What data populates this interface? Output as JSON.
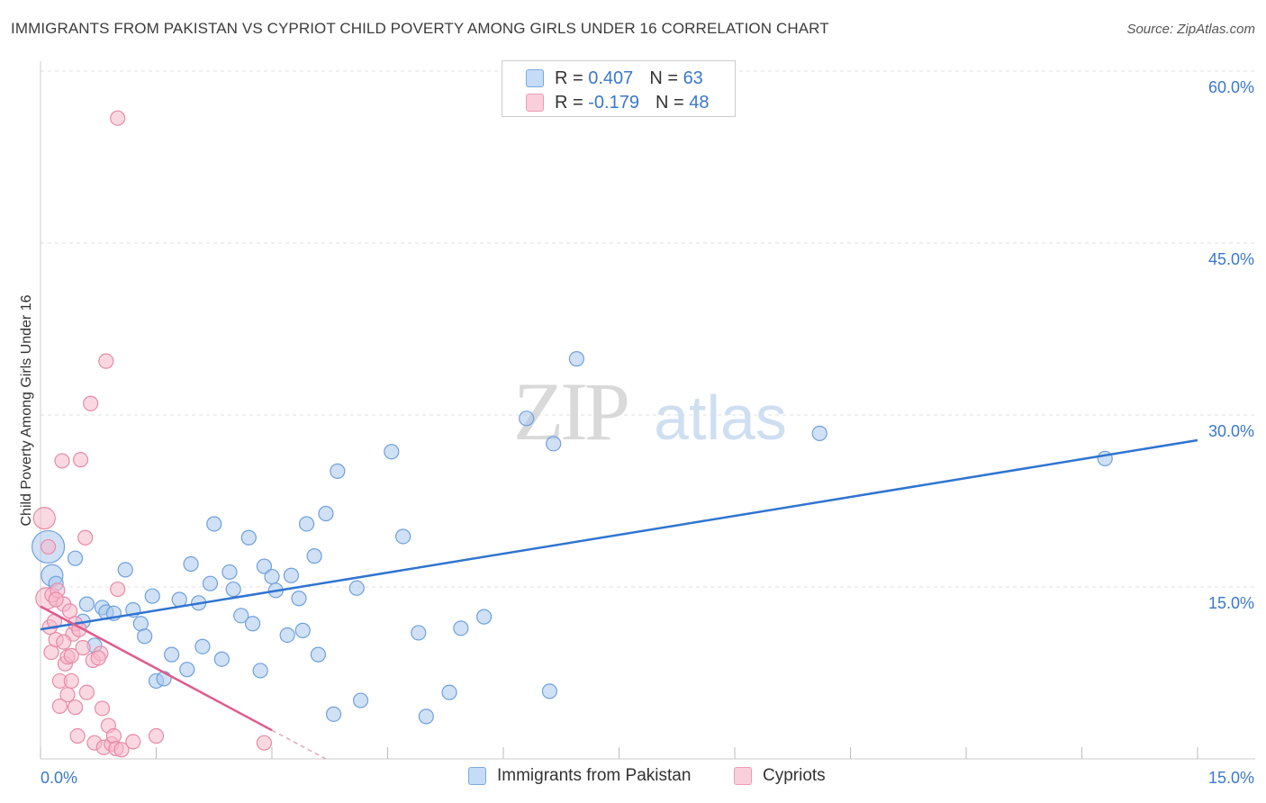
{
  "title": "IMMIGRANTS FROM PAKISTAN VS CYPRIOT CHILD POVERTY AMONG GIRLS UNDER 16 CORRELATION CHART",
  "source": "Source: ZipAtlas.com",
  "watermark": {
    "zip": "ZIP",
    "atlas": "atlas"
  },
  "legend": {
    "series1": {
      "r_label": "R =",
      "r_value": "0.407",
      "n_label": "N =",
      "n_value": "63"
    },
    "series2": {
      "r_label": "R =",
      "r_value": "-0.179",
      "n_label": "N =",
      "n_value": "48"
    }
  },
  "bottom_legend": {
    "series1": "Immigrants from Pakistan",
    "series2": "Cypriots"
  },
  "colors": {
    "blue_fill": "#aac8ef",
    "blue_stroke": "#6fa0dc",
    "blue_line": "#2f74d0",
    "pink_fill": "#f5b8cb",
    "pink_stroke": "#e88aa8",
    "pink_line": "#e05a8a",
    "tick_label": "#3a78c9",
    "grid": "#e2e2e2"
  },
  "chart_data": {
    "type": "scatter",
    "title": "IMMIGRANTS FROM PAKISTAN VS CYPRIOT CHILD POVERTY AMONG GIRLS UNDER 16 CORRELATION CHART",
    "xlabel": "",
    "ylabel": "Child Poverty Among Girls Under 16",
    "xlim": [
      0,
      15
    ],
    "ylim": [
      0,
      60
    ],
    "x_tick_labels": [
      "0.0%",
      "15.0%"
    ],
    "y_tick_values": [
      15,
      30,
      45,
      60
    ],
    "y_tick_labels": [
      "15.0%",
      "30.0%",
      "45.0%",
      "60.0%"
    ],
    "series": [
      {
        "name": "Immigrants from Pakistan",
        "color": "blue",
        "points": [
          [
            0.1,
            18.5,
            3
          ],
          [
            0.15,
            16.0,
            2
          ],
          [
            0.2,
            15.3,
            1
          ],
          [
            0.45,
            17.5,
            1
          ],
          [
            0.55,
            12.0,
            1
          ],
          [
            0.6,
            13.5,
            1
          ],
          [
            0.7,
            9.9,
            1
          ],
          [
            0.8,
            13.2,
            1
          ],
          [
            0.85,
            12.8,
            1
          ],
          [
            0.95,
            12.7,
            1
          ],
          [
            1.1,
            16.5,
            1
          ],
          [
            1.2,
            13.0,
            1
          ],
          [
            1.3,
            11.8,
            1
          ],
          [
            1.35,
            10.7,
            1
          ],
          [
            1.45,
            14.2,
            1
          ],
          [
            1.5,
            6.8,
            1
          ],
          [
            1.6,
            7.0,
            1
          ],
          [
            1.7,
            9.1,
            1
          ],
          [
            1.8,
            13.9,
            1
          ],
          [
            1.9,
            7.8,
            1
          ],
          [
            1.95,
            17.0,
            1
          ],
          [
            2.05,
            13.6,
            1
          ],
          [
            2.1,
            9.8,
            1
          ],
          [
            2.2,
            15.3,
            1
          ],
          [
            2.25,
            20.5,
            1
          ],
          [
            2.35,
            8.7,
            1
          ],
          [
            2.45,
            16.3,
            1
          ],
          [
            2.5,
            14.8,
            1
          ],
          [
            2.6,
            12.5,
            1
          ],
          [
            2.7,
            19.3,
            1
          ],
          [
            2.75,
            11.8,
            1
          ],
          [
            2.85,
            7.7,
            1
          ],
          [
            2.9,
            16.8,
            1
          ],
          [
            3.0,
            15.9,
            1
          ],
          [
            3.05,
            14.7,
            1
          ],
          [
            3.2,
            10.8,
            1
          ],
          [
            3.25,
            16.0,
            1
          ],
          [
            3.35,
            14.0,
            1
          ],
          [
            3.4,
            11.2,
            1
          ],
          [
            3.45,
            20.5,
            1
          ],
          [
            3.55,
            17.7,
            1
          ],
          [
            3.6,
            9.1,
            1
          ],
          [
            3.7,
            21.4,
            1
          ],
          [
            3.8,
            3.9,
            1
          ],
          [
            3.85,
            25.1,
            1
          ],
          [
            4.1,
            14.9,
            1
          ],
          [
            4.15,
            5.1,
            1
          ],
          [
            4.55,
            26.8,
            1
          ],
          [
            4.7,
            19.4,
            1
          ],
          [
            4.9,
            11.0,
            1
          ],
          [
            5.0,
            3.7,
            1
          ],
          [
            5.3,
            5.8,
            1
          ],
          [
            5.45,
            11.4,
            1
          ],
          [
            5.75,
            12.4,
            1
          ],
          [
            6.3,
            29.7,
            1
          ],
          [
            6.6,
            5.9,
            1
          ],
          [
            6.65,
            27.5,
            1
          ],
          [
            6.95,
            34.9,
            1
          ],
          [
            10.1,
            28.4,
            1
          ],
          [
            13.8,
            26.2,
            1
          ]
        ],
        "trendline": {
          "x1": 0.0,
          "y1": 11.3,
          "x2": 15.0,
          "y2": 27.8
        }
      },
      {
        "name": "Cypriots",
        "color": "pink",
        "points": [
          [
            0.05,
            21.0,
            2
          ],
          [
            0.08,
            14.0,
            2
          ],
          [
            0.1,
            18.5,
            1
          ],
          [
            0.12,
            11.5,
            1
          ],
          [
            0.14,
            9.3,
            1
          ],
          [
            0.15,
            14.3,
            1
          ],
          [
            0.18,
            12.0,
            1
          ],
          [
            0.2,
            10.4,
            1
          ],
          [
            0.22,
            14.7,
            1
          ],
          [
            0.25,
            6.8,
            1
          ],
          [
            0.25,
            4.6,
            1
          ],
          [
            0.28,
            26.0,
            1
          ],
          [
            0.3,
            13.5,
            1
          ],
          [
            0.32,
            8.3,
            1
          ],
          [
            0.35,
            8.9,
            1
          ],
          [
            0.35,
            5.6,
            1
          ],
          [
            0.38,
            12.9,
            1
          ],
          [
            0.4,
            6.8,
            1
          ],
          [
            0.42,
            10.9,
            1
          ],
          [
            0.45,
            11.8,
            1
          ],
          [
            0.45,
            4.5,
            1
          ],
          [
            0.48,
            2.0,
            1
          ],
          [
            0.5,
            11.3,
            1
          ],
          [
            0.52,
            26.1,
            1
          ],
          [
            0.55,
            9.7,
            1
          ],
          [
            0.58,
            19.3,
            1
          ],
          [
            0.6,
            5.8,
            1
          ],
          [
            0.65,
            31.0,
            1
          ],
          [
            0.68,
            8.6,
            1
          ],
          [
            0.7,
            1.4,
            1
          ],
          [
            0.78,
            9.2,
            1
          ],
          [
            0.8,
            4.4,
            1
          ],
          [
            0.82,
            1.0,
            1
          ],
          [
            0.85,
            34.7,
            1
          ],
          [
            0.88,
            2.9,
            1
          ],
          [
            0.92,
            1.3,
            1
          ],
          [
            0.95,
            2.0,
            1
          ],
          [
            0.98,
            0.9,
            1
          ],
          [
            1.0,
            55.9,
            1
          ],
          [
            1.0,
            14.8,
            1
          ],
          [
            1.05,
            0.8,
            1
          ],
          [
            1.2,
            1.5,
            1
          ],
          [
            1.5,
            2.0,
            1
          ],
          [
            2.9,
            1.4,
            1
          ],
          [
            0.75,
            8.8,
            1
          ],
          [
            0.3,
            10.2,
            1
          ],
          [
            0.4,
            9.0,
            1
          ],
          [
            0.2,
            13.9,
            1
          ]
        ],
        "trendline": {
          "x1": 0.0,
          "y1": 13.3,
          "x2": 3.0,
          "y2": 2.5,
          "dash_to_x": 3.7,
          "dash_to_y": 0.0
        }
      }
    ]
  }
}
